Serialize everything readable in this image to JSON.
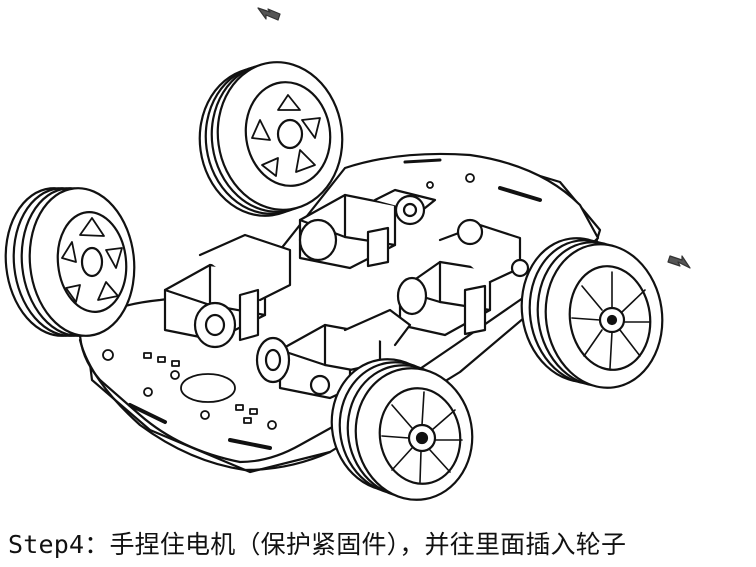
{
  "caption": "Step4：手捏住电机（保护紧固件），并往里面插入轮子",
  "diagram": {
    "wheels": [
      {
        "id": "wheel-top-left",
        "spokes": 6
      },
      {
        "id": "wheel-left",
        "spokes": 6
      },
      {
        "id": "wheel-right",
        "spokes": 8
      },
      {
        "id": "wheel-bottom-front",
        "spokes": 8
      }
    ],
    "arrows": [
      {
        "id": "arrow-top",
        "direction": "in"
      },
      {
        "id": "arrow-right",
        "direction": "in"
      }
    ],
    "motors": 4
  }
}
